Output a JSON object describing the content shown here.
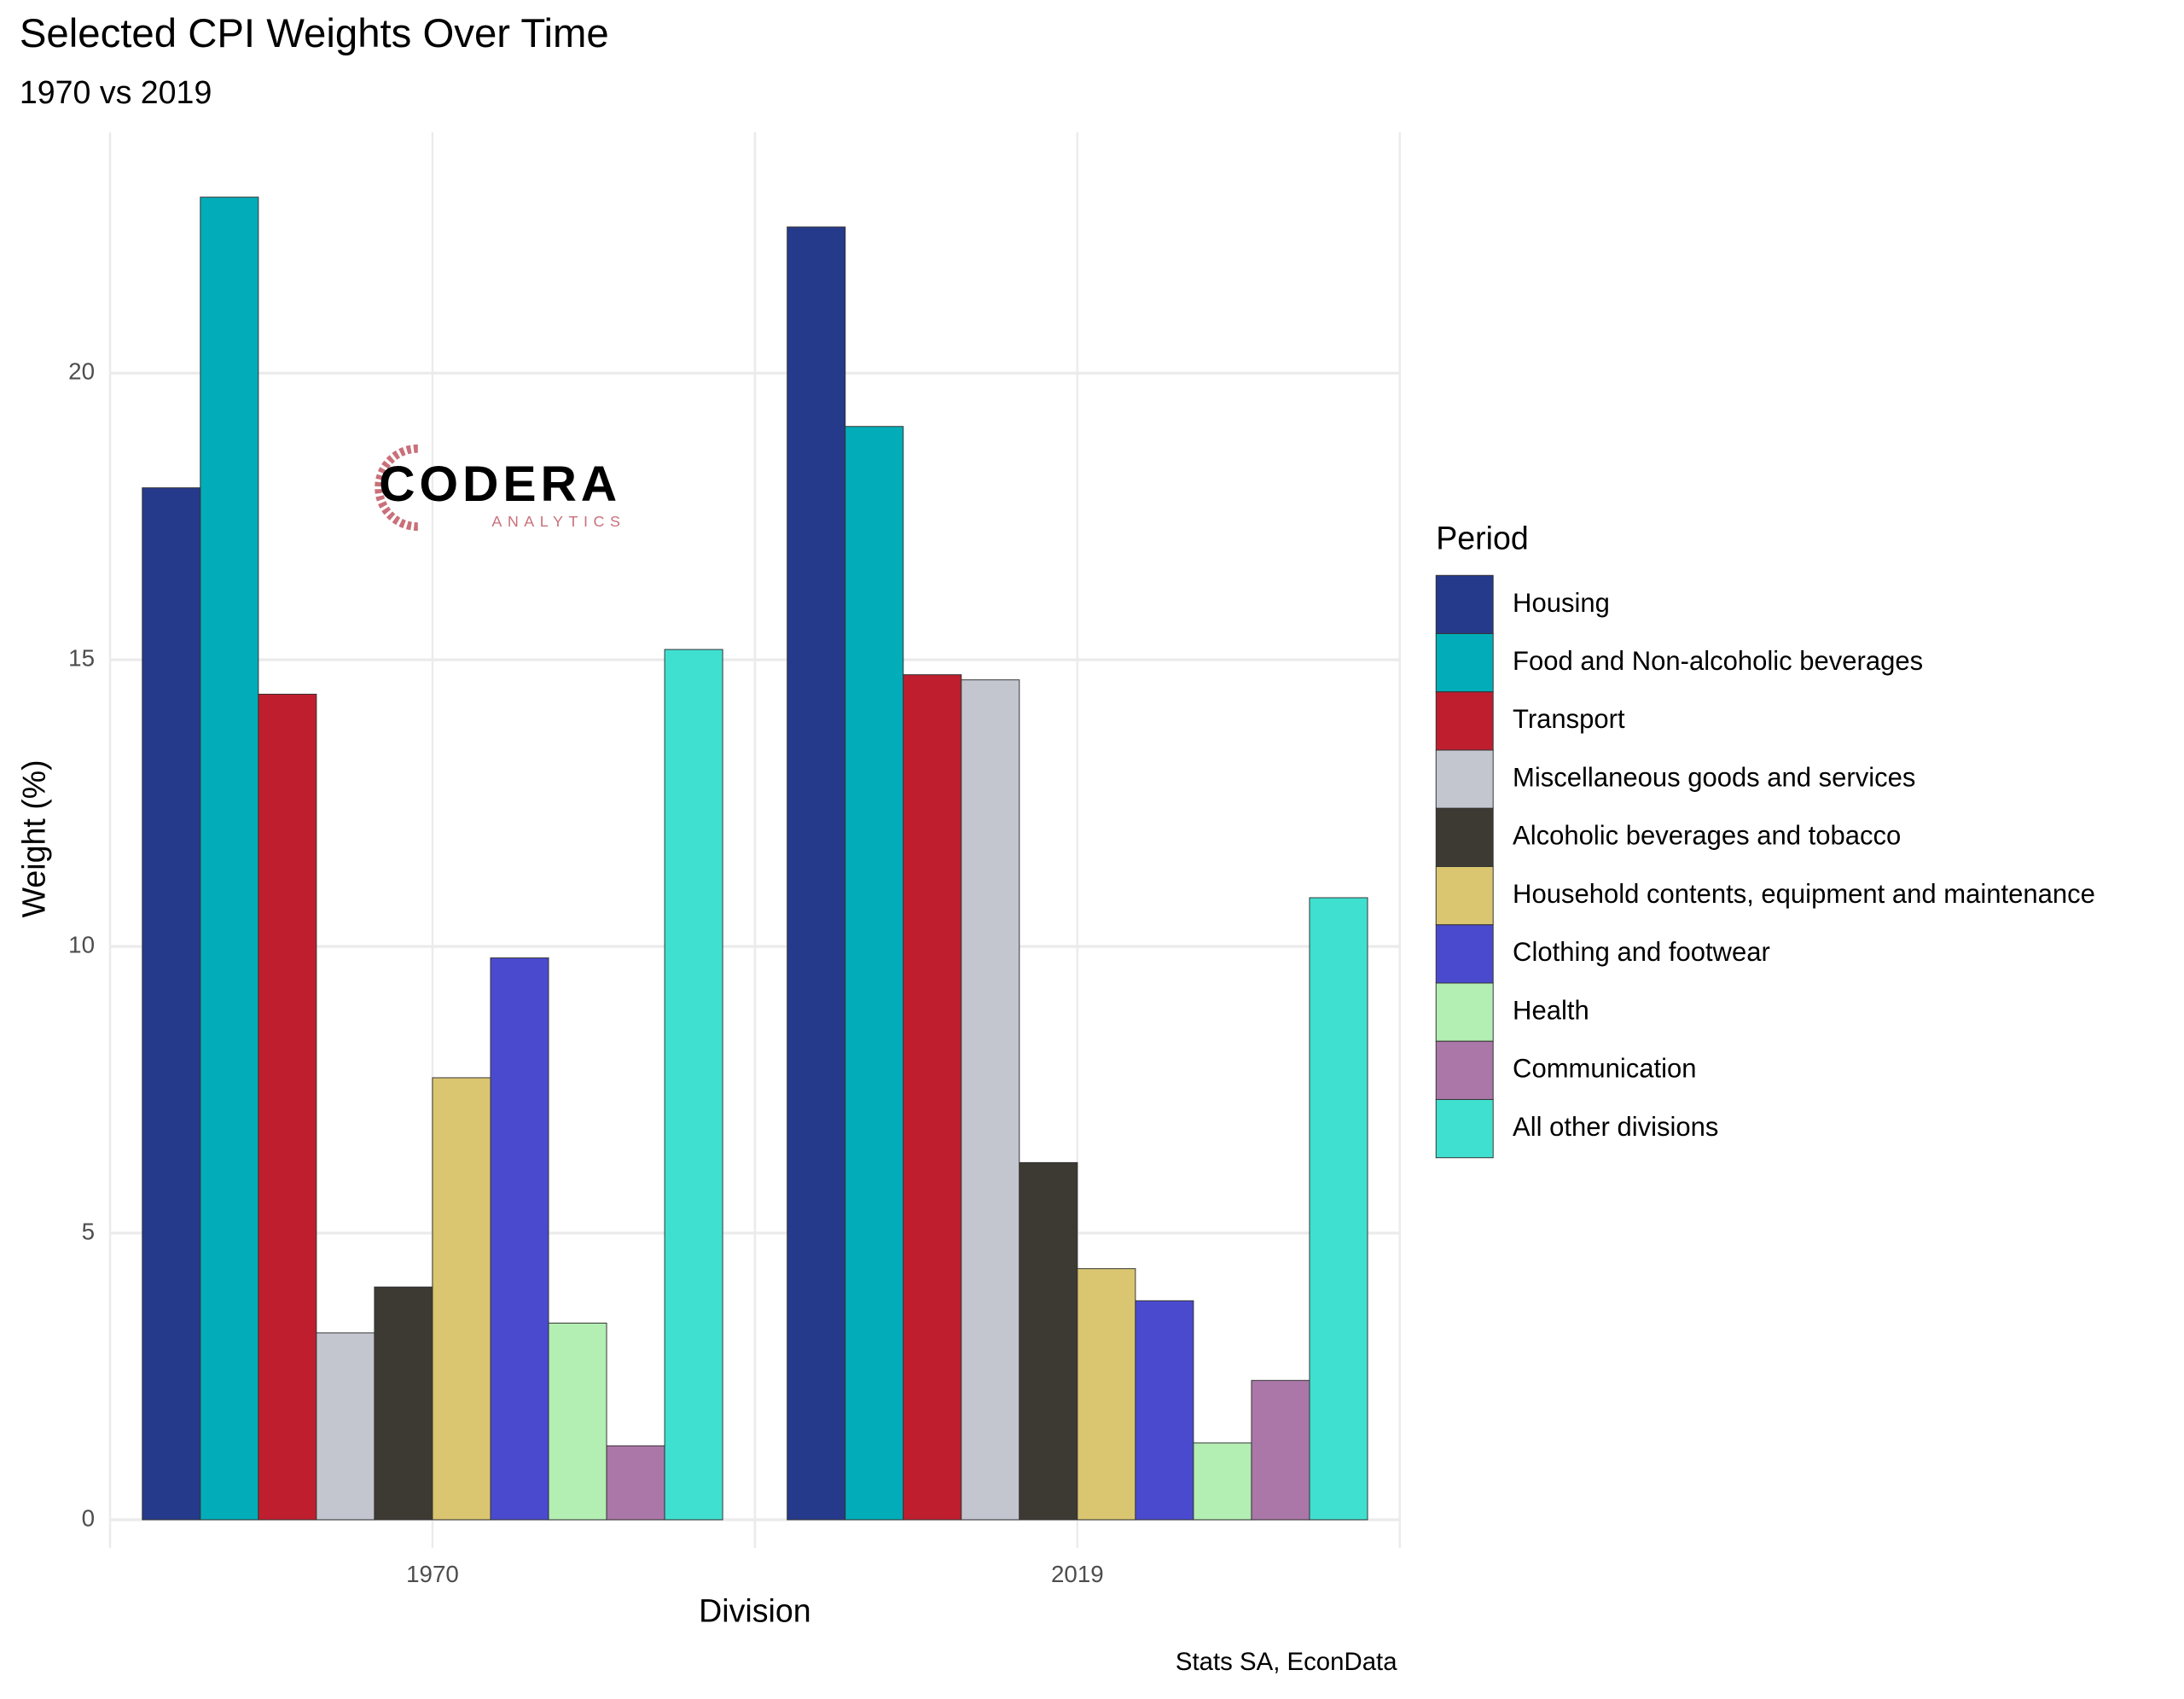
{
  "chart_data": {
    "type": "bar",
    "title": "Selected CPI Weights Over Time",
    "subtitle": "1970 vs 2019",
    "x_label": "Division",
    "y_label": "Weight (%)",
    "caption": "Stats SA, EconData",
    "logo": {
      "name": "CODERA",
      "tagline": "ANALYTICS"
    },
    "legend_title": "Period",
    "legend_position": "right",
    "grid": true,
    "categories": [
      "1970",
      "2019"
    ],
    "ylim": [
      -0.49,
      24.2
    ],
    "yticks": [
      0,
      5,
      10,
      15,
      20
    ],
    "series": [
      {
        "name": "Housing",
        "color": "#263a8b",
        "values": [
          18.0,
          22.55
        ]
      },
      {
        "name": "Food and Non-alcoholic beverages",
        "color": "#02adb9",
        "values": [
          23.07,
          19.07
        ]
      },
      {
        "name": "Transport",
        "color": "#bf1e2e",
        "values": [
          14.4,
          14.74
        ]
      },
      {
        "name": "Miscellaneous goods and services",
        "color": "#c3c6cf",
        "values": [
          3.26,
          14.65
        ]
      },
      {
        "name": "Alcoholic beverages and tobacco",
        "color": "#3d3a33",
        "values": [
          4.06,
          6.23
        ]
      },
      {
        "name": "Household contents, equipment and maintenance",
        "color": "#dac670",
        "values": [
          7.71,
          4.38
        ]
      },
      {
        "name": "Clothing and footwear",
        "color": "#4a4acf",
        "values": [
          9.8,
          3.82
        ]
      },
      {
        "name": "Health",
        "color": "#b3eeb3",
        "values": [
          3.43,
          1.34
        ]
      },
      {
        "name": "Communication",
        "color": "#ab77a8",
        "values": [
          1.29,
          2.43
        ]
      },
      {
        "name": "All other divisions",
        "color": "#40e0d0",
        "values": [
          15.18,
          10.85
        ]
      }
    ]
  }
}
